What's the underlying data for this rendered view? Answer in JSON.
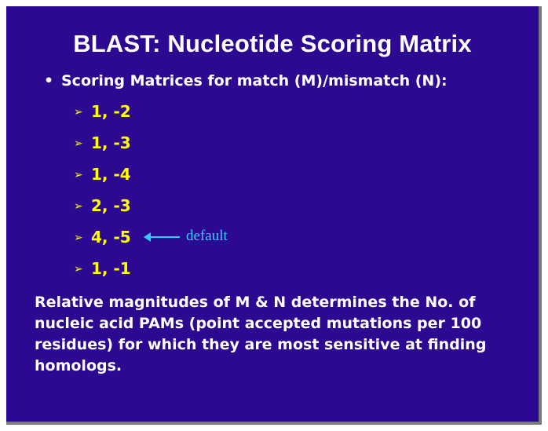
{
  "slide": {
    "title": "BLAST: Nucleotide Scoring Matrix",
    "bullet": {
      "marker": "•",
      "text": "Scoring Matrices for match (M)/mismatch (N):"
    },
    "items": [
      {
        "marker": "➢",
        "label": "1, -2"
      },
      {
        "marker": "➢",
        "label": "1, -3"
      },
      {
        "marker": "➢",
        "label": "1, -4"
      },
      {
        "marker": "➢",
        "label": "2, -3"
      },
      {
        "marker": "➢",
        "label": "4, -5"
      },
      {
        "marker": "➢",
        "label": "1, -1"
      }
    ],
    "default_note": "default",
    "paragraph": [
      "Relative magnitudes of M & N determines the No. of",
      "nucleic acid  PAMs (point accepted mutations per 100",
      "residues) for which they are most sensitive at finding",
      "homologs."
    ],
    "colors": {
      "background": "#2d0891",
      "title": "#ffffff",
      "items": "#ffff00",
      "annotation": "#33ccff"
    }
  }
}
